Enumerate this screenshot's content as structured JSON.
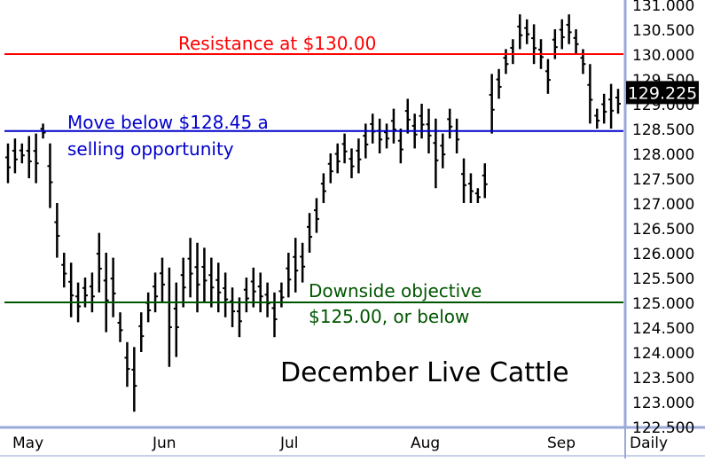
{
  "chart_data": {
    "type": "ohlc",
    "title": "December Live Cattle",
    "y_axis": {
      "min": 122.5,
      "max": 131.0,
      "ticks": [
        "131.000",
        "130.500",
        "130.000",
        "129.500",
        "129.000",
        "128.500",
        "128.000",
        "127.500",
        "127.000",
        "126.500",
        "126.000",
        "125.500",
        "125.000",
        "124.500",
        "124.000",
        "123.500",
        "123.000",
        "122.500"
      ],
      "tick_values": [
        131.0,
        130.5,
        130.0,
        129.5,
        129.0,
        128.5,
        128.0,
        127.5,
        127.0,
        126.5,
        126.0,
        125.5,
        125.0,
        124.5,
        124.0,
        123.5,
        123.0,
        122.5
      ]
    },
    "x_axis": {
      "labels": [
        "May",
        "Jun",
        "Jul",
        "Aug",
        "Sep",
        "Daily"
      ]
    },
    "last_price": "129.225",
    "last_price_value": 129.225,
    "series": [
      {
        "high": 128.2,
        "low": 127.4
      },
      {
        "high": 128.3,
        "low": 127.6
      },
      {
        "high": 128.2,
        "low": 127.8
      },
      {
        "high": 128.35,
        "low": 127.5
      },
      {
        "high": 128.4,
        "low": 127.4
      },
      {
        "high": 128.6,
        "low": 128.3
      },
      {
        "high": 128.2,
        "low": 126.9
      },
      {
        "high": 127.0,
        "low": 125.9
      },
      {
        "high": 126.0,
        "low": 125.3
      },
      {
        "high": 125.8,
        "low": 124.7
      },
      {
        "high": 125.4,
        "low": 124.6
      },
      {
        "high": 125.5,
        "low": 124.9
      },
      {
        "high": 125.6,
        "low": 124.8
      },
      {
        "high": 126.4,
        "low": 125.2
      },
      {
        "high": 126.0,
        "low": 124.4
      },
      {
        "high": 125.9,
        "low": 124.7
      },
      {
        "high": 124.8,
        "low": 124.2
      },
      {
        "high": 124.2,
        "low": 123.3
      },
      {
        "high": 124.1,
        "low": 122.8
      },
      {
        "high": 124.8,
        "low": 124.0
      },
      {
        "high": 125.2,
        "low": 124.6
      },
      {
        "high": 125.6,
        "low": 124.8
      },
      {
        "high": 125.9,
        "low": 125.0
      },
      {
        "high": 125.7,
        "low": 123.7
      },
      {
        "high": 125.4,
        "low": 123.9
      },
      {
        "high": 125.9,
        "low": 124.9
      },
      {
        "high": 126.3,
        "low": 125.1
      },
      {
        "high": 126.2,
        "low": 124.8
      },
      {
        "high": 126.1,
        "low": 125.0
      },
      {
        "high": 125.9,
        "low": 124.9
      },
      {
        "high": 125.8,
        "low": 124.8
      },
      {
        "high": 125.6,
        "low": 124.7
      },
      {
        "high": 125.3,
        "low": 124.5
      },
      {
        "high": 125.1,
        "low": 124.3
      },
      {
        "high": 125.5,
        "low": 124.8
      },
      {
        "high": 125.7,
        "low": 124.9
      },
      {
        "high": 125.6,
        "low": 124.8
      },
      {
        "high": 125.4,
        "low": 124.7
      },
      {
        "high": 125.2,
        "low": 124.3
      },
      {
        "high": 125.4,
        "low": 124.9
      },
      {
        "high": 126.0,
        "low": 125.1
      },
      {
        "high": 126.3,
        "low": 125.2
      },
      {
        "high": 126.2,
        "low": 125.4
      },
      {
        "high": 126.8,
        "low": 126.0
      },
      {
        "high": 127.1,
        "low": 126.4
      },
      {
        "high": 127.6,
        "low": 127.0
      },
      {
        "high": 128.0,
        "low": 127.4
      },
      {
        "high": 128.2,
        "low": 127.6
      },
      {
        "high": 128.4,
        "low": 127.8
      },
      {
        "high": 128.1,
        "low": 127.5
      },
      {
        "high": 128.3,
        "low": 127.6
      },
      {
        "high": 128.6,
        "low": 127.9
      },
      {
        "high": 128.8,
        "low": 128.2
      },
      {
        "high": 128.7,
        "low": 128.0
      },
      {
        "high": 128.6,
        "low": 128.1
      },
      {
        "high": 128.9,
        "low": 128.2
      },
      {
        "high": 128.5,
        "low": 127.8
      },
      {
        "high": 129.1,
        "low": 128.4
      },
      {
        "high": 128.8,
        "low": 128.1
      },
      {
        "high": 129.0,
        "low": 128.3
      },
      {
        "high": 128.9,
        "low": 128.0
      },
      {
        "high": 128.7,
        "low": 127.3
      },
      {
        "high": 128.4,
        "low": 127.7
      },
      {
        "high": 128.9,
        "low": 128.3
      },
      {
        "high": 128.7,
        "low": 128.0
      },
      {
        "high": 127.9,
        "low": 127.0
      },
      {
        "high": 127.6,
        "low": 127.0
      },
      {
        "high": 127.3,
        "low": 127.0
      },
      {
        "high": 127.8,
        "low": 127.1
      },
      {
        "high": 129.6,
        "low": 128.4
      },
      {
        "high": 129.7,
        "low": 129.1
      },
      {
        "high": 130.1,
        "low": 129.6
      },
      {
        "high": 130.3,
        "low": 129.8
      },
      {
        "high": 130.8,
        "low": 130.1
      },
      {
        "high": 130.7,
        "low": 130.2
      },
      {
        "high": 130.6,
        "low": 129.8
      },
      {
        "high": 130.3,
        "low": 129.7
      },
      {
        "high": 129.9,
        "low": 129.2
      },
      {
        "high": 130.5,
        "low": 129.9
      },
      {
        "high": 130.7,
        "low": 130.1
      },
      {
        "high": 130.8,
        "low": 130.2
      },
      {
        "high": 130.5,
        "low": 130.0
      },
      {
        "high": 130.1,
        "low": 129.6
      },
      {
        "high": 129.8,
        "low": 128.6
      },
      {
        "high": 128.9,
        "low": 128.5
      },
      {
        "high": 129.2,
        "low": 128.6
      },
      {
        "high": 129.4,
        "low": 128.5
      },
      {
        "high": 129.3,
        "low": 128.8
      }
    ],
    "horizontal_lines": [
      {
        "value": 130.0,
        "label": "Resistance at $130.00",
        "color": "#ff0000"
      },
      {
        "value": 128.45,
        "label": "Move below $128.45 a selling opportunity",
        "color": "#0000cc"
      },
      {
        "value": 125.0,
        "label": "Downside objective $125.00, or below",
        "color": "#005500"
      }
    ],
    "annotations": {
      "resistance": "Resistance at $130.00",
      "selling_line1": "Move below $128.45 a",
      "selling_line2": "selling opportunity",
      "downside_line1": "Downside objective",
      "downside_line2": "$125.00, or below"
    },
    "colors": {
      "bars": "#000000",
      "axis": "#9aaad8",
      "resistance": "#ff0000",
      "selling": "#0000cc",
      "downside": "#005500",
      "price_tag_bg": "#000000",
      "price_tag_text": "#ffffff"
    }
  }
}
